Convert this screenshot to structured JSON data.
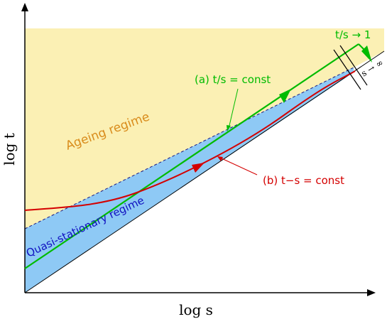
{
  "axes": {
    "x_label": "log s",
    "y_label": "log t"
  },
  "regions": {
    "ageing_label": "Ageing regime",
    "quasi_label": "Quasi-stationary regime"
  },
  "curves": {
    "a_label": "(a)  t/s = const",
    "b_label": "(b)  t−s = const",
    "limit_ts_label": "t/s → 1",
    "limit_s_label": "s → ∞"
  },
  "colors": {
    "ageing_fill": "#fbf0b4",
    "quasi_fill": "#8ec9f5",
    "curve_a": "#00bb00",
    "curve_b": "#d40000",
    "ageing_text": "#d98c1c",
    "quasi_text": "#1010c0",
    "axis": "#000000"
  }
}
